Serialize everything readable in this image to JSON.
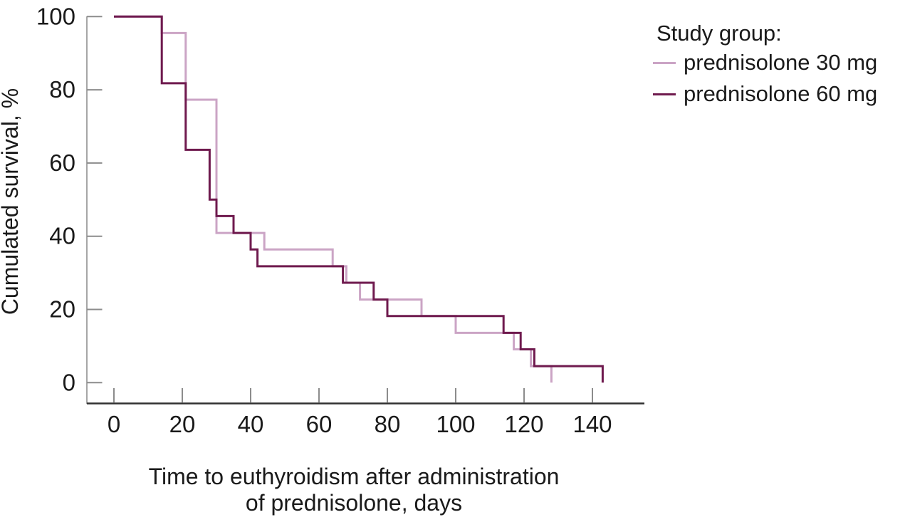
{
  "chart_data": {
    "type": "line",
    "subtype": "kaplan-meier-step",
    "title": "",
    "ylabel": "Cumulated survival, %",
    "xlabel_lines": [
      "Time to euthyroidism after administration",
      "of prednisolone, days"
    ],
    "x_ticks": [
      0,
      20,
      40,
      60,
      80,
      100,
      120,
      140
    ],
    "y_ticks": [
      0,
      20,
      40,
      60,
      80,
      100
    ],
    "xlim": [
      0,
      155
    ],
    "ylim": [
      0,
      100
    ],
    "grid": false,
    "legend": {
      "title": "Study group:",
      "position": "top-right",
      "entries": [
        {
          "label": "prednisolone 30 mg",
          "color": "#cba4c5"
        },
        {
          "label": "prednisolone 60 mg",
          "color": "#6f1a4e"
        }
      ]
    },
    "series": [
      {
        "name": "prednisolone 30 mg",
        "color": "#cba4c5",
        "points_time_days_vs_survival_pct": [
          [
            0,
            100
          ],
          [
            14,
            95.5
          ],
          [
            21,
            77.3
          ],
          [
            30,
            40.9
          ],
          [
            44,
            36.4
          ],
          [
            64,
            31.8
          ],
          [
            68,
            27.3
          ],
          [
            72,
            22.7
          ],
          [
            90,
            18.2
          ],
          [
            100,
            13.6
          ],
          [
            117,
            9.1
          ],
          [
            122,
            4.5
          ],
          [
            128,
            0
          ]
        ]
      },
      {
        "name": "prednisolone 60 mg",
        "color": "#6f1a4e",
        "points_time_days_vs_survival_pct": [
          [
            0,
            100
          ],
          [
            14,
            81.8
          ],
          [
            21,
            63.6
          ],
          [
            28,
            50
          ],
          [
            30,
            45.5
          ],
          [
            35,
            40.9
          ],
          [
            40,
            36.4
          ],
          [
            42,
            31.8
          ],
          [
            67,
            27.3
          ],
          [
            76,
            22.7
          ],
          [
            80,
            18.2
          ],
          [
            114,
            13.6
          ],
          [
            119,
            9.1
          ],
          [
            123,
            4.5
          ],
          [
            143,
            0
          ]
        ]
      }
    ],
    "axis_colors": {
      "y_axis": "#a6a6a6",
      "x_axis": "#303030",
      "ticks": "#8c8c8c",
      "text": "#1a1a1a"
    }
  }
}
